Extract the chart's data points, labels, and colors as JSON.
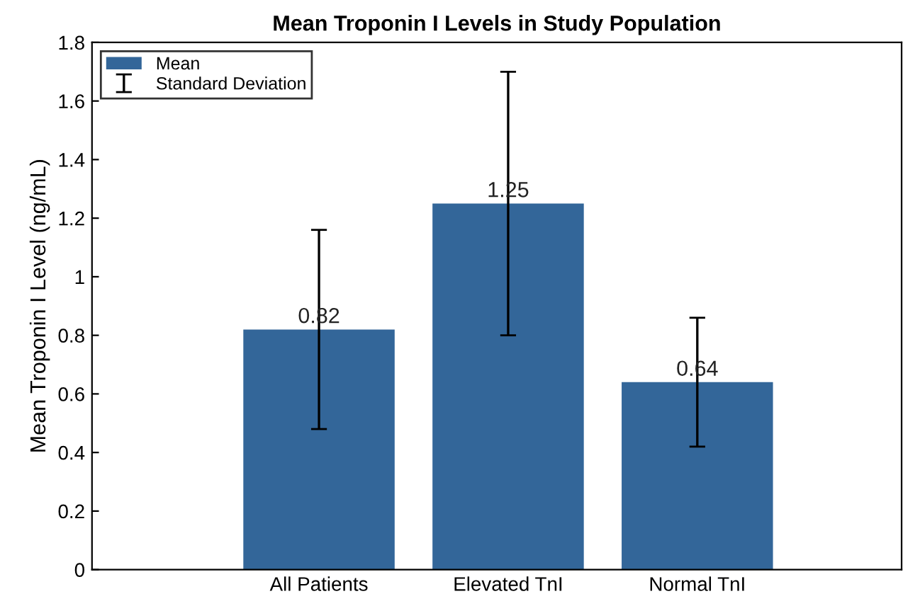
{
  "chart_data": {
    "type": "bar",
    "title": "Mean Troponin I Levels in Study Population",
    "ylabel": "Mean Troponin I Level (ng/mL)",
    "categories": [
      "All Patients",
      "Elevated TnI",
      "Normal TnI"
    ],
    "series": [
      {
        "name": "Mean",
        "color": "#336699",
        "values": [
          0.82,
          1.25,
          0.64
        ],
        "errors": [
          0.34,
          0.45,
          0.22
        ]
      }
    ],
    "annotations": [
      "Standard Deviation"
    ],
    "data_labels": true,
    "legend": "top left",
    "grid": false,
    "ylim": [
      0,
      1.8
    ],
    "yticks": [
      0,
      0.2,
      0.4,
      0.6,
      0.8,
      1,
      1.2,
      1.4,
      1.6,
      1.8
    ]
  }
}
